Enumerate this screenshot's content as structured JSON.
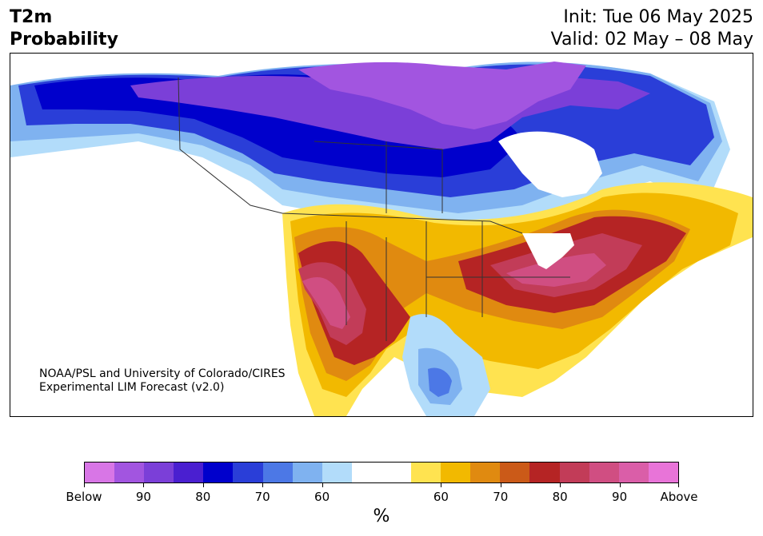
{
  "header": {
    "variable": "T2m",
    "product": "Probability",
    "init": "Init: Tue 06 May 2025",
    "valid": "Valid: 02 May – 08 May"
  },
  "credit": {
    "line1": "NOAA/PSL and University of Colorado/CIRES",
    "line2": "Experimental LIM Forecast (v2.0)"
  },
  "colorbar": {
    "unit": "%",
    "colors": [
      "#d876e6",
      "#a255e0",
      "#7b3fd8",
      "#4a1fd0",
      "#0000cc",
      "#2a3ed8",
      "#4c78e6",
      "#7fb2f0",
      "#b2dcfa",
      "#ffffff",
      "#ffffff",
      "#ffe350",
      "#f2b900",
      "#e08a10",
      "#cb5a18",
      "#b52424",
      "#c23c58",
      "#d04e82",
      "#da5ea8",
      "#e874d8"
    ],
    "tick_labels": [
      "Below",
      "90",
      "80",
      "70",
      "60",
      "60",
      "70",
      "80",
      "90",
      "Above"
    ]
  },
  "map": {
    "colors": {
      "land": "#ffffff",
      "ocean": "#ffffff",
      "below_purple": "#a255e0",
      "below_violet": "#7b3fd8",
      "below_deep": "#0000cc",
      "below_blue": "#2a3ed8",
      "below_mid": "#4c78e6",
      "below_light": "#7fb2f0",
      "below_pale": "#b2dcfa",
      "above_yellow": "#ffe350",
      "above_gold": "#f2b900",
      "above_orange": "#e08a10",
      "above_rust": "#cb5a18",
      "above_red": "#b52424",
      "above_crimson": "#c23c58",
      "above_pink": "#d04e82",
      "borders": "#333333"
    }
  }
}
